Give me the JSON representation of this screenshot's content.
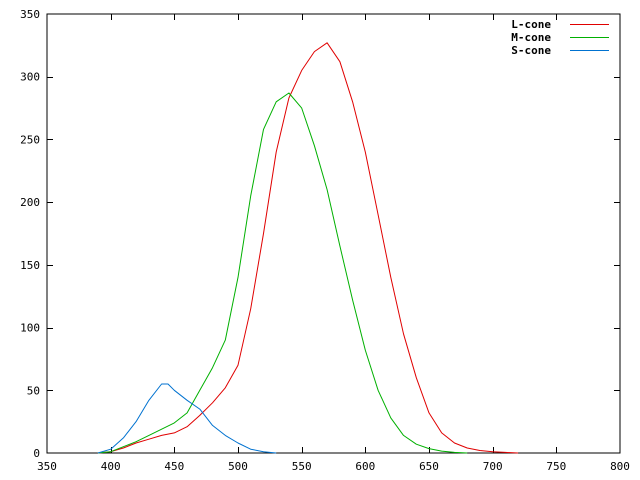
{
  "chart_data": {
    "type": "line",
    "title": "",
    "xlabel": "",
    "ylabel": "",
    "xlim": [
      350,
      800
    ],
    "ylim": [
      0,
      350
    ],
    "x_ticks": [
      350,
      400,
      450,
      500,
      550,
      600,
      650,
      700,
      750,
      800
    ],
    "y_ticks": [
      0,
      50,
      100,
      150,
      200,
      250,
      300,
      350
    ],
    "grid": false,
    "legend_position": "top-right",
    "series": [
      {
        "name": "L-cone",
        "color": "#e00000",
        "points": [
          [
            390,
            0
          ],
          [
            400,
            1
          ],
          [
            410,
            4
          ],
          [
            420,
            8
          ],
          [
            430,
            11
          ],
          [
            440,
            14
          ],
          [
            450,
            16
          ],
          [
            460,
            21
          ],
          [
            470,
            30
          ],
          [
            480,
            40
          ],
          [
            490,
            52
          ],
          [
            500,
            70
          ],
          [
            510,
            115
          ],
          [
            520,
            175
          ],
          [
            530,
            240
          ],
          [
            540,
            283
          ],
          [
            550,
            305
          ],
          [
            560,
            320
          ],
          [
            570,
            327
          ],
          [
            580,
            312
          ],
          [
            590,
            280
          ],
          [
            600,
            240
          ],
          [
            610,
            190
          ],
          [
            620,
            140
          ],
          [
            630,
            95
          ],
          [
            640,
            60
          ],
          [
            650,
            32
          ],
          [
            660,
            16
          ],
          [
            670,
            8
          ],
          [
            680,
            4
          ],
          [
            690,
            2
          ],
          [
            700,
            1
          ],
          [
            710,
            0.5
          ],
          [
            720,
            0
          ]
        ]
      },
      {
        "name": "M-cone",
        "color": "#00b000",
        "points": [
          [
            390,
            0
          ],
          [
            400,
            1
          ],
          [
            410,
            5
          ],
          [
            420,
            9
          ],
          [
            430,
            14
          ],
          [
            440,
            19
          ],
          [
            450,
            24
          ],
          [
            460,
            32
          ],
          [
            470,
            50
          ],
          [
            480,
            68
          ],
          [
            490,
            90
          ],
          [
            500,
            140
          ],
          [
            510,
            205
          ],
          [
            520,
            258
          ],
          [
            530,
            280
          ],
          [
            540,
            287
          ],
          [
            550,
            275
          ],
          [
            560,
            245
          ],
          [
            570,
            210
          ],
          [
            580,
            165
          ],
          [
            590,
            122
          ],
          [
            600,
            82
          ],
          [
            610,
            50
          ],
          [
            620,
            28
          ],
          [
            630,
            14
          ],
          [
            640,
            7
          ],
          [
            650,
            3.5
          ],
          [
            660,
            1.5
          ],
          [
            670,
            0.5
          ],
          [
            680,
            0
          ]
        ]
      },
      {
        "name": "S-cone",
        "color": "#0072d0",
        "points": [
          [
            390,
            0
          ],
          [
            400,
            3
          ],
          [
            410,
            12
          ],
          [
            420,
            25
          ],
          [
            430,
            42
          ],
          [
            440,
            55
          ],
          [
            445,
            55
          ],
          [
            450,
            50
          ],
          [
            460,
            42
          ],
          [
            470,
            35
          ],
          [
            480,
            22
          ],
          [
            490,
            14
          ],
          [
            500,
            8
          ],
          [
            510,
            3
          ],
          [
            520,
            1
          ],
          [
            530,
            0
          ]
        ]
      }
    ]
  }
}
